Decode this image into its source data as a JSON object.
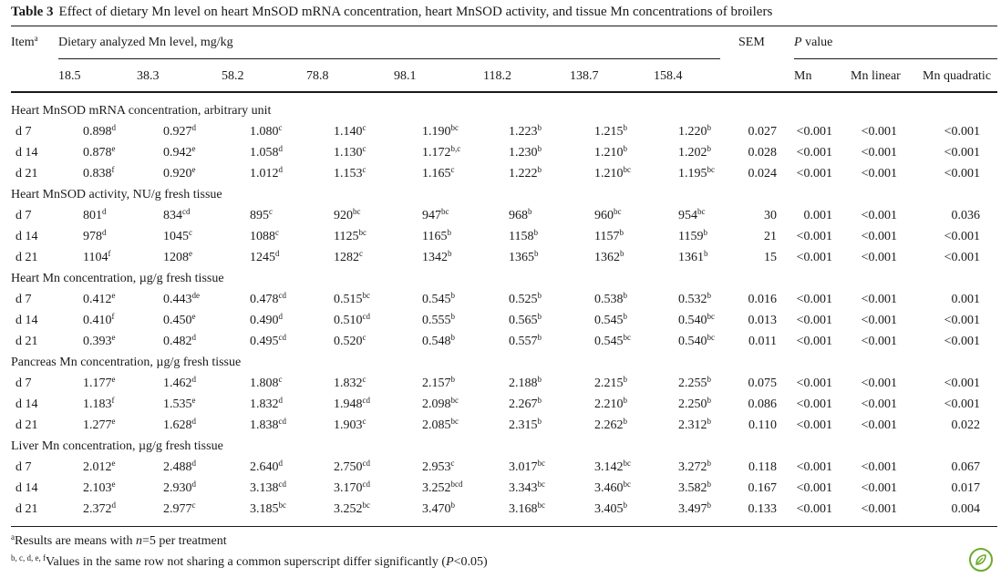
{
  "caption": {
    "label": "Table 3",
    "text": "Effect of dietary Mn level on heart MnSOD mRNA concentration, heart MnSOD activity, and tissue Mn concentrations of broilers"
  },
  "header": {
    "item": "Item",
    "item_sup": "a",
    "dietary": "Dietary analyzed Mn level, mg/kg",
    "sem": "SEM",
    "pvalue_italic": "P",
    "pvalue_rest": " value",
    "levels": [
      "18.5",
      "38.3",
      "58.2",
      "78.8",
      "98.1",
      "118.2",
      "138.7",
      "158.4"
    ],
    "p_cols": [
      "Mn",
      "Mn linear",
      "Mn quadratic"
    ]
  },
  "sections": [
    {
      "title": "Heart MnSOD mRNA concentration, arbitrary unit",
      "rows": [
        {
          "label": "d 7",
          "vals": [
            [
              "0.898",
              "d"
            ],
            [
              "0.927",
              "d"
            ],
            [
              "1.080",
              "c"
            ],
            [
              "1.140",
              "c"
            ],
            [
              "1.190",
              "bc"
            ],
            [
              "1.223",
              "b"
            ],
            [
              "1.215",
              "b"
            ],
            [
              "1.220",
              "b"
            ]
          ],
          "sem": "0.027",
          "p": [
            "<0.001",
            "<0.001",
            "<0.001"
          ]
        },
        {
          "label": "d 14",
          "vals": [
            [
              "0.878",
              "e"
            ],
            [
              "0.942",
              "e"
            ],
            [
              "1.058",
              "d"
            ],
            [
              "1.130",
              "c"
            ],
            [
              "1.172",
              "b,c"
            ],
            [
              "1.230",
              "b"
            ],
            [
              "1.210",
              "b"
            ],
            [
              "1.202",
              "b"
            ]
          ],
          "sem": "0.028",
          "p": [
            "<0.001",
            "<0.001",
            "<0.001"
          ]
        },
        {
          "label": "d 21",
          "vals": [
            [
              "0.838",
              "f"
            ],
            [
              "0.920",
              "e"
            ],
            [
              "1.012",
              "d"
            ],
            [
              "1.153",
              "c"
            ],
            [
              "1.165",
              "c"
            ],
            [
              "1.222",
              "b"
            ],
            [
              "1.210",
              "bc"
            ],
            [
              "1.195",
              "bc"
            ]
          ],
          "sem": "0.024",
          "p": [
            "<0.001",
            "<0.001",
            "<0.001"
          ]
        }
      ]
    },
    {
      "title": "Heart MnSOD activity, NU/g fresh tissue",
      "rows": [
        {
          "label": "d 7",
          "vals": [
            [
              "801",
              "d"
            ],
            [
              "834",
              "cd"
            ],
            [
              "895",
              "c"
            ],
            [
              "920",
              "bc"
            ],
            [
              "947",
              "bc"
            ],
            [
              "968",
              "b"
            ],
            [
              "960",
              "bc"
            ],
            [
              "954",
              "bc"
            ]
          ],
          "sem": "30",
          "p": [
            "0.001",
            "<0.001",
            "0.036"
          ]
        },
        {
          "label": "d 14",
          "vals": [
            [
              "978",
              "d"
            ],
            [
              "1045",
              "c"
            ],
            [
              "1088",
              "c"
            ],
            [
              "1125",
              "bc"
            ],
            [
              "1165",
              "b"
            ],
            [
              "1158",
              "b"
            ],
            [
              "1157",
              "b"
            ],
            [
              "1159",
              "b"
            ]
          ],
          "sem": "21",
          "p": [
            "<0.001",
            "<0.001",
            "<0.001"
          ]
        },
        {
          "label": "d 21",
          "vals": [
            [
              "1104",
              "f"
            ],
            [
              "1208",
              "e"
            ],
            [
              "1245",
              "d"
            ],
            [
              "1282",
              "c"
            ],
            [
              "1342",
              "b"
            ],
            [
              "1365",
              "b"
            ],
            [
              "1362",
              "b"
            ],
            [
              "1361",
              "b"
            ]
          ],
          "sem": "15",
          "p": [
            "<0.001",
            "<0.001",
            "<0.001"
          ]
        }
      ]
    },
    {
      "title": "Heart Mn concentration, µg/g fresh tissue",
      "rows": [
        {
          "label": "d 7",
          "vals": [
            [
              "0.412",
              "e"
            ],
            [
              "0.443",
              "de"
            ],
            [
              "0.478",
              "cd"
            ],
            [
              "0.515",
              "bc"
            ],
            [
              "0.545",
              "b"
            ],
            [
              "0.525",
              "b"
            ],
            [
              "0.538",
              "b"
            ],
            [
              "0.532",
              "b"
            ]
          ],
          "sem": "0.016",
          "p": [
            "<0.001",
            "<0.001",
            "0.001"
          ]
        },
        {
          "label": "d 14",
          "vals": [
            [
              "0.410",
              "f"
            ],
            [
              "0.450",
              "e"
            ],
            [
              "0.490",
              "d"
            ],
            [
              "0.510",
              "cd"
            ],
            [
              "0.555",
              "b"
            ],
            [
              "0.565",
              "b"
            ],
            [
              "0.545",
              "b"
            ],
            [
              "0.540",
              "bc"
            ]
          ],
          "sem": "0.013",
          "p": [
            "<0.001",
            "<0.001",
            "<0.001"
          ]
        },
        {
          "label": "d 21",
          "vals": [
            [
              "0.393",
              "e"
            ],
            [
              "0.482",
              "d"
            ],
            [
              "0.495",
              "cd"
            ],
            [
              "0.520",
              "c"
            ],
            [
              "0.548",
              "b"
            ],
            [
              "0.557",
              "b"
            ],
            [
              "0.545",
              "bc"
            ],
            [
              "0.540",
              "bc"
            ]
          ],
          "sem": "0.011",
          "p": [
            "<0.001",
            "<0.001",
            "<0.001"
          ]
        }
      ]
    },
    {
      "title": "Pancreas Mn concentration, µg/g fresh tissue",
      "rows": [
        {
          "label": "d 7",
          "vals": [
            [
              "1.177",
              "e"
            ],
            [
              "1.462",
              "d"
            ],
            [
              "1.808",
              "c"
            ],
            [
              "1.832",
              "c"
            ],
            [
              "2.157",
              "b"
            ],
            [
              "2.188",
              "b"
            ],
            [
              "2.215",
              "b"
            ],
            [
              "2.255",
              "b"
            ]
          ],
          "sem": "0.075",
          "p": [
            "<0.001",
            "<0.001",
            "<0.001"
          ]
        },
        {
          "label": "d 14",
          "vals": [
            [
              "1.183",
              "f"
            ],
            [
              "1.535",
              "e"
            ],
            [
              "1.832",
              "d"
            ],
            [
              "1.948",
              "cd"
            ],
            [
              "2.098",
              "bc"
            ],
            [
              "2.267",
              "b"
            ],
            [
              "2.210",
              "b"
            ],
            [
              "2.250",
              "b"
            ]
          ],
          "sem": "0.086",
          "p": [
            "<0.001",
            "<0.001",
            "<0.001"
          ]
        },
        {
          "label": "d 21",
          "vals": [
            [
              "1.277",
              "e"
            ],
            [
              "1.628",
              "d"
            ],
            [
              "1.838",
              "cd"
            ],
            [
              "1.903",
              "c"
            ],
            [
              "2.085",
              "bc"
            ],
            [
              "2.315",
              "b"
            ],
            [
              "2.262",
              "b"
            ],
            [
              "2.312",
              "b"
            ]
          ],
          "sem": "0.110",
          "p": [
            "<0.001",
            "<0.001",
            "0.022"
          ]
        }
      ]
    },
    {
      "title": "Liver Mn concentration, µg/g fresh tissue",
      "rows": [
        {
          "label": "d 7",
          "vals": [
            [
              "2.012",
              "e"
            ],
            [
              "2.488",
              "d"
            ],
            [
              "2.640",
              "d"
            ],
            [
              "2.750",
              "cd"
            ],
            [
              "2.953",
              "c"
            ],
            [
              "3.017",
              "bc"
            ],
            [
              "3.142",
              "bc"
            ],
            [
              "3.272",
              "b"
            ]
          ],
          "sem": "0.118",
          "p": [
            "<0.001",
            "<0.001",
            "0.067"
          ]
        },
        {
          "label": "d 14",
          "vals": [
            [
              "2.103",
              "e"
            ],
            [
              "2.930",
              "d"
            ],
            [
              "3.138",
              "cd"
            ],
            [
              "3.170",
              "cd"
            ],
            [
              "3.252",
              "bcd"
            ],
            [
              "3.343",
              "bc"
            ],
            [
              "3.460",
              "bc"
            ],
            [
              "3.582",
              "b"
            ]
          ],
          "sem": "0.167",
          "p": [
            "<0.001",
            "<0.001",
            "0.017"
          ]
        },
        {
          "label": "d 21",
          "vals": [
            [
              "2.372",
              "d"
            ],
            [
              "2.977",
              "c"
            ],
            [
              "3.185",
              "bc"
            ],
            [
              "3.252",
              "bc"
            ],
            [
              "3.470",
              "b"
            ],
            [
              "3.168",
              "bc"
            ],
            [
              "3.405",
              "b"
            ],
            [
              "3.497",
              "b"
            ]
          ],
          "sem": "0.133",
          "p": [
            "<0.001",
            "<0.001",
            "0.004"
          ]
        }
      ]
    }
  ],
  "footnotes": {
    "a_sup": "a",
    "a_text_1": "Results are means with ",
    "a_text_n": "n",
    "a_text_2": "=5 per treatment",
    "b_sup": "b, c, d, e, f",
    "b_text_1": "Values in the same row not sharing a common superscript differ significantly (",
    "b_text_p": "P",
    "b_text_2": "<0.05)"
  },
  "colors": {
    "text": "#1a1a1a",
    "logo": "#6cab2e"
  },
  "icons": {
    "logo": "springer-leaf-icon"
  }
}
